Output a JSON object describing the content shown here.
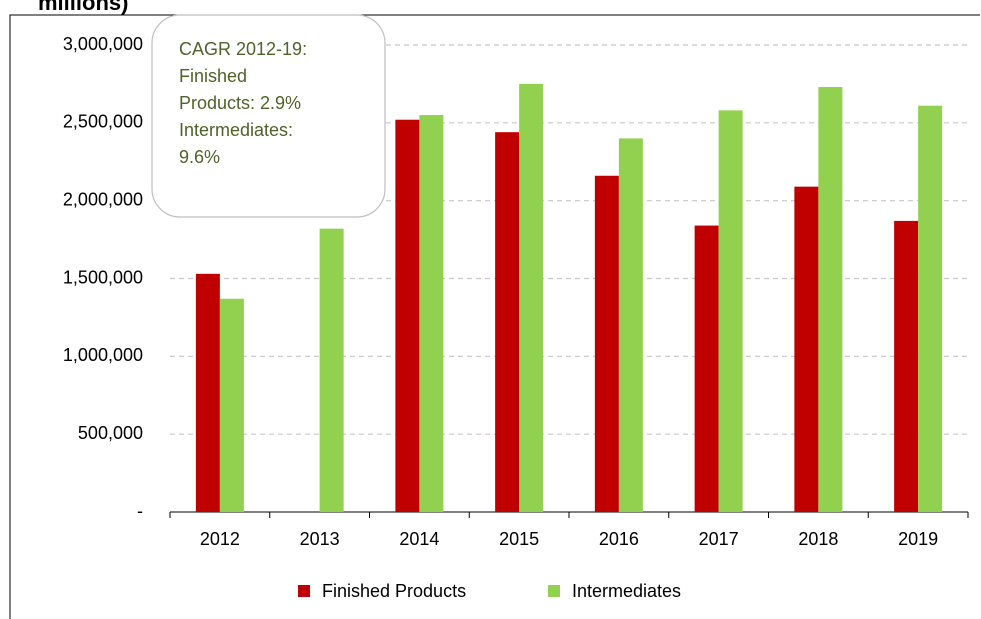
{
  "chart_data": {
    "type": "bar",
    "title": "millions)",
    "categories": [
      "2012",
      "2013",
      "2014",
      "2015",
      "2016",
      "2017",
      "2018",
      "2019"
    ],
    "series": [
      {
        "name": "Finished Products",
        "color": "#c00000",
        "values": [
          1530000,
          null,
          2520000,
          2440000,
          2160000,
          1840000,
          2090000,
          1870000
        ]
      },
      {
        "name": "Intermediates",
        "color": "#92d050",
        "values": [
          1370000,
          1820000,
          2550000,
          2750000,
          2400000,
          2580000,
          2730000,
          2610000
        ]
      }
    ],
    "ylim": [
      0,
      3000000
    ],
    "yticks": [
      {
        "value": 0,
        "label": "-"
      },
      {
        "value": 500000,
        "label": "500,000"
      },
      {
        "value": 1000000,
        "label": "1,000,000"
      },
      {
        "value": 1500000,
        "label": "1,500,000"
      },
      {
        "value": 2000000,
        "label": "2,000,000"
      },
      {
        "value": 2500000,
        "label": "2,500,000"
      },
      {
        "value": 3000000,
        "label": "3,000,000"
      }
    ],
    "grid": true,
    "legend": "bottom",
    "annotation": [
      "CAGR 2012-19:",
      "Finished",
      "Products: 2.9%",
      "Intermediates:",
      "9.6%"
    ]
  }
}
